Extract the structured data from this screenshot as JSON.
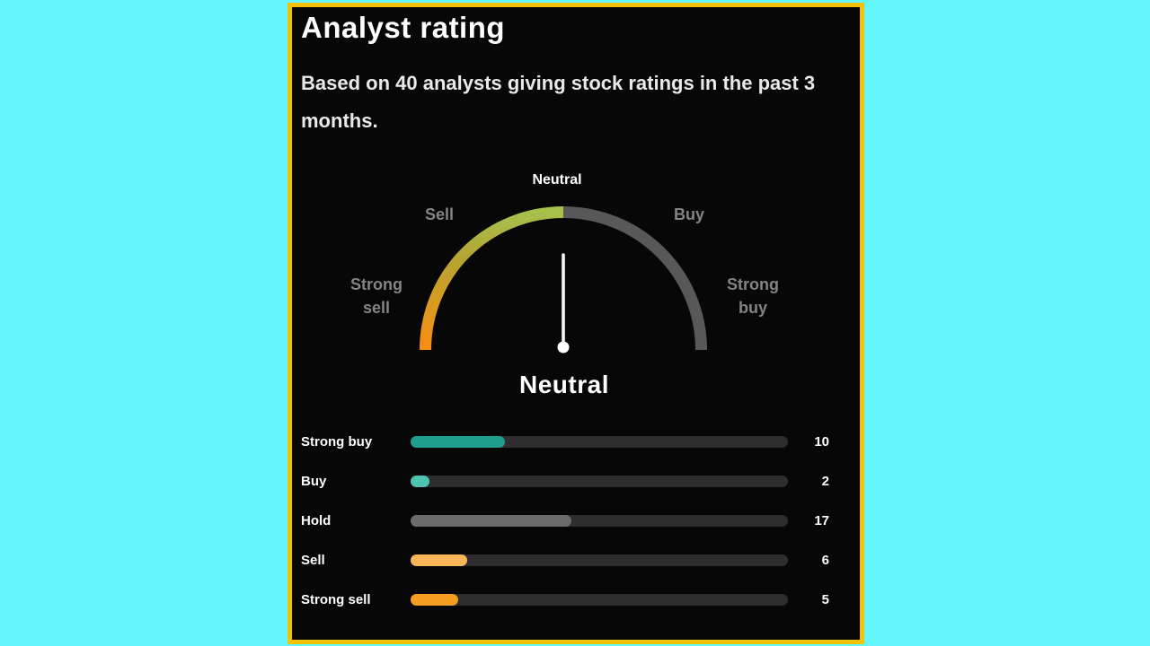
{
  "colors": {
    "background": "#63f7fd",
    "panel_border": "#f3c301",
    "panel_bg": "#070707",
    "text": "#ffffff",
    "muted_text": "#848484",
    "subtitle_text": "#e9e9e9",
    "bar_track": "#2e2e2e",
    "needle": "#f5f5f5"
  },
  "header": {
    "title": "Analyst rating",
    "subtitle": "Based on 40 analysts giving stock ratings in the past 3 months."
  },
  "gauge": {
    "label_top": "Neutral",
    "label_left_upper": "Sell",
    "label_right_upper": "Buy",
    "label_left_lower_line1": "Strong",
    "label_left_lower_line2": "sell",
    "label_right_lower_line1": "Strong",
    "label_right_lower_line2": "buy",
    "verdict": "Neutral"
  },
  "chart_data": [
    {
      "type": "gauge",
      "title": "Analyst rating gauge",
      "scale_labels": [
        "Strong sell",
        "Sell",
        "Neutral",
        "Buy",
        "Strong buy"
      ],
      "current_value": "Neutral",
      "needle_direction": "straight up (Neutral, center of scale)",
      "active_arc": {
        "span": "Strong sell (bottom left) to Neutral (top center)",
        "gradient": [
          "#f68e12",
          "#d89b1f",
          "#b5a433",
          "#a6c14c"
        ]
      },
      "inactive_arc_color": "#585858"
    },
    {
      "type": "bar",
      "orientation": "horizontal",
      "categories": [
        "Strong buy",
        "Buy",
        "Hold",
        "Sell",
        "Strong sell"
      ],
      "values": [
        10,
        2,
        17,
        6,
        5
      ],
      "total_analysts": 40,
      "xlim": [
        0,
        40
      ],
      "bar_colors": [
        "#1f9e8e",
        "#4ec3b0",
        "#6b6b6b",
        "#f9b75a",
        "#f59d20"
      ],
      "track_color": "#2e2e2e",
      "legend_position": "none",
      "grid": false
    }
  ]
}
